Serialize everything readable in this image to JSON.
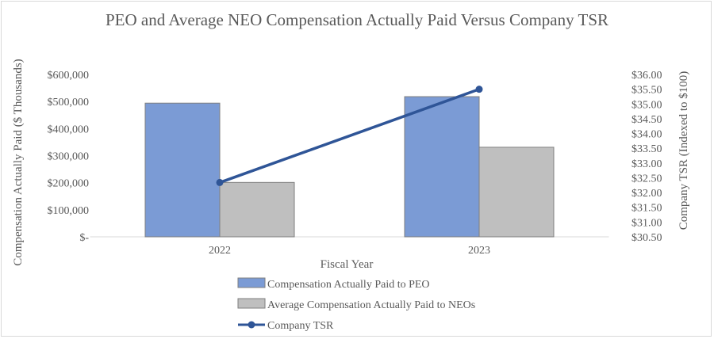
{
  "chart_data": {
    "type": "bar",
    "title": "PEO and Average NEO Compensation Actually Paid Versus Company TSR",
    "xlabel": "Fiscal Year",
    "ylabel": "Compensation Actually Paid ($ Thousands)",
    "y2label": "Company TSR (Indexed to $100)",
    "categories": [
      "2022",
      "2023"
    ],
    "ylim": [
      0,
      600000
    ],
    "y2lim": [
      30.5,
      36.0
    ],
    "yticks": [
      "$-",
      "$100,000",
      "$200,000",
      "$300,000",
      "$400,000",
      "$500,000",
      "$600,000"
    ],
    "y2ticks": [
      "$30.50",
      "$31.00",
      "$31.50",
      "$32.00",
      "$32.50",
      "$33.00",
      "$33.50",
      "$34.00",
      "$34.50",
      "$35.00",
      "$35.50",
      "$36.00"
    ],
    "grid": false,
    "legend_position": "bottom",
    "series": [
      {
        "name": "Compensation Actually Paid to PEO",
        "kind": "bar",
        "axis": "left",
        "color": "#7b9bd5",
        "values": [
          494000,
          518000
        ]
      },
      {
        "name": "Average Compensation Actually Paid to NEOs",
        "kind": "bar",
        "axis": "left",
        "color": "#bfbfbf",
        "values": [
          201000,
          331000
        ]
      },
      {
        "name": "Company TSR",
        "kind": "line",
        "axis": "right",
        "color": "#2f5597",
        "values": [
          32.34,
          35.5
        ]
      }
    ]
  }
}
